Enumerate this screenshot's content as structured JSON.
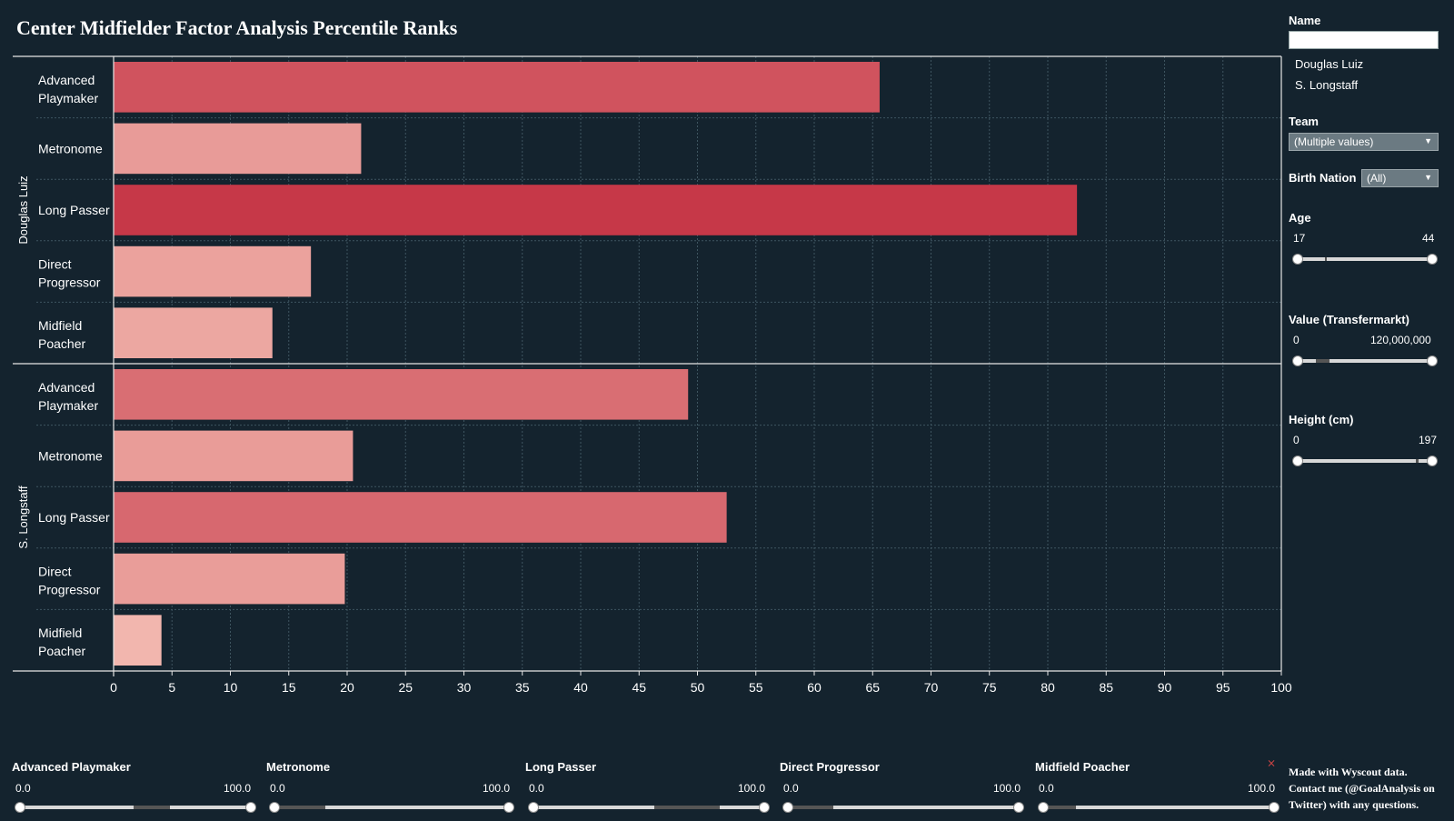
{
  "title": "Center Midfielder Factor Analysis Percentile Ranks",
  "chart_data": {
    "type": "bar",
    "orientation": "horizontal",
    "panels": [
      {
        "row_label": "Douglas Luiz",
        "categories": [
          "Advanced Playmaker",
          "Metronome",
          "Long Passer",
          "Direct Progressor",
          "Midfield Poacher"
        ],
        "values": [
          65.6,
          21.2,
          82.5,
          16.9,
          13.6
        ]
      },
      {
        "row_label": "S. Longstaff",
        "categories": [
          "Advanced Playmaker",
          "Metronome",
          "Long Passer",
          "Direct Progressor",
          "Midfield Poacher"
        ],
        "values": [
          49.2,
          20.5,
          52.5,
          19.8,
          4.1
        ]
      }
    ],
    "xlim": [
      0,
      100
    ],
    "xticks": [
      "0",
      "5",
      "10",
      "15",
      "20",
      "25",
      "30",
      "35",
      "40",
      "45",
      "50",
      "55",
      "60",
      "65",
      "70",
      "75",
      "80",
      "85",
      "90",
      "95",
      "100"
    ],
    "grid": true,
    "color_scale": {
      "low": "#f4bdb3",
      "high": "#c53445"
    }
  },
  "filters": {
    "name": {
      "label": "Name",
      "placeholder": "",
      "items": [
        "Douglas Luiz",
        "S. Longstaff"
      ]
    },
    "team": {
      "label": "Team",
      "value": "(Multiple values)"
    },
    "birth_nation": {
      "label": "Birth Nation",
      "value": "(All)"
    },
    "age": {
      "label": "Age",
      "min": "17",
      "max": "44"
    },
    "value": {
      "label": "Value (Transfermarkt)",
      "min": "0",
      "max": "120,000,000"
    },
    "height": {
      "label": "Height (cm)",
      "min": "0",
      "max": "197"
    }
  },
  "factor_filters": [
    {
      "label": "Advanced Playmaker",
      "min": "0.0",
      "max": "100.0"
    },
    {
      "label": "Metronome",
      "min": "0.0",
      "max": "100.0"
    },
    {
      "label": "Long Passer",
      "min": "0.0",
      "max": "100.0"
    },
    {
      "label": "Direct Progressor",
      "min": "0.0",
      "max": "100.0"
    },
    {
      "label": "Midfield Poacher",
      "min": "0.0",
      "max": "100.0"
    }
  ],
  "footer_note": {
    "line1": "Made with Wyscout data.",
    "line2": "Contact me (@GoalAnalysis on",
    "line3": "Twitter) with any questions."
  },
  "icons": {
    "clear_filter": "clear-filter-icon",
    "dropdown": "chevron-down-icon"
  }
}
